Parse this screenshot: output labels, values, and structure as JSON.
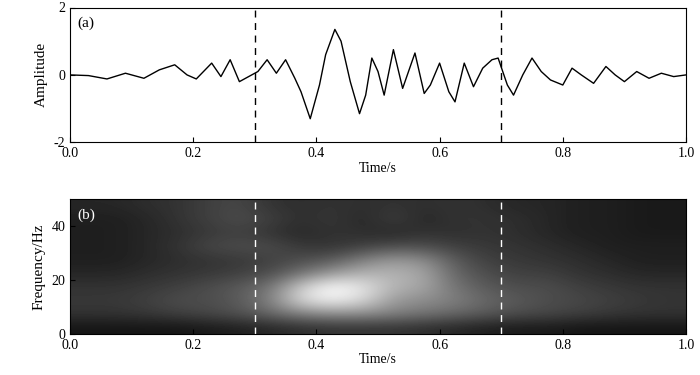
{
  "chart_data": [
    {
      "type": "line",
      "annotation": "(a)",
      "xlabel": "Time/s",
      "ylabel": "Amplitude",
      "x": [
        0.0,
        0.03,
        0.06,
        0.09,
        0.12,
        0.145,
        0.17,
        0.19,
        0.205,
        0.23,
        0.245,
        0.26,
        0.275,
        0.29,
        0.305,
        0.32,
        0.335,
        0.35,
        0.365,
        0.375,
        0.39,
        0.405,
        0.415,
        0.43,
        0.44,
        0.455,
        0.47,
        0.48,
        0.49,
        0.5,
        0.51,
        0.525,
        0.54,
        0.56,
        0.575,
        0.585,
        0.6,
        0.615,
        0.625,
        0.64,
        0.655,
        0.67,
        0.685,
        0.695,
        0.71,
        0.72,
        0.735,
        0.75,
        0.765,
        0.78,
        0.8,
        0.815,
        0.83,
        0.85,
        0.87,
        0.885,
        0.9,
        0.92,
        0.94,
        0.96,
        0.98,
        1.0
      ],
      "values": [
        0,
        -0.02,
        -0.12,
        0.05,
        -0.1,
        0.15,
        0.3,
        0.0,
        -0.12,
        0.35,
        -0.05,
        0.45,
        -0.2,
        -0.05,
        0.1,
        0.45,
        0.05,
        0.45,
        -0.1,
        -0.5,
        -1.3,
        -0.3,
        0.6,
        1.35,
        1.0,
        -0.2,
        -1.15,
        -0.6,
        0.5,
        0.1,
        -0.6,
        0.75,
        -0.4,
        0.65,
        -0.55,
        -0.3,
        0.35,
        -0.5,
        -0.8,
        0.35,
        -0.35,
        0.2,
        0.45,
        0.5,
        -0.3,
        -0.6,
        0.0,
        0.5,
        0.1,
        -0.15,
        -0.3,
        0.2,
        0.0,
        -0.25,
        0.25,
        0.0,
        -0.2,
        0.1,
        -0.1,
        0.05,
        -0.05,
        0
      ],
      "color": "#000000",
      "vlines": [
        0.3,
        0.7
      ],
      "xlim": [
        0,
        1
      ],
      "ylim": [
        -2,
        2
      ],
      "xticks": [
        {
          "value": 0,
          "label": "0.0"
        },
        {
          "value": 0.2,
          "label": "0.2"
        },
        {
          "value": 0.4,
          "label": "0.4"
        },
        {
          "value": 0.6,
          "label": "0.6"
        },
        {
          "value": 0.8,
          "label": "0.8"
        },
        {
          "value": 1,
          "label": "1.0"
        }
      ],
      "yticks": [
        -2,
        0,
        2
      ]
    },
    {
      "type": "heatmap",
      "annotation": "(b)",
      "xlabel": "Time/s",
      "ylabel": "Frequency/Hz",
      "x": [
        0.025,
        0.075,
        0.125,
        0.175,
        0.225,
        0.275,
        0.325,
        0.375,
        0.425,
        0.475,
        0.525,
        0.575,
        0.625,
        0.675,
        0.725,
        0.775,
        0.825,
        0.875,
        0.925,
        0.975
      ],
      "y": [
        2.5,
        7.5,
        12.5,
        17.5,
        22.5,
        27.5,
        32.5,
        37.5,
        42.5,
        47.5
      ],
      "cells": [
        [
          0.08,
          0.08,
          0.08,
          0.08,
          0.1,
          0.12,
          0.15,
          0.18,
          0.2,
          0.2,
          0.2,
          0.18,
          0.15,
          0.12,
          0.1,
          0.1,
          0.08,
          0.08,
          0.08,
          0.08
        ],
        [
          0.2,
          0.2,
          0.22,
          0.25,
          0.28,
          0.32,
          0.4,
          0.5,
          0.55,
          0.55,
          0.5,
          0.45,
          0.4,
          0.35,
          0.3,
          0.28,
          0.25,
          0.22,
          0.2,
          0.2
        ],
        [
          0.22,
          0.22,
          0.25,
          0.3,
          0.3,
          0.35,
          0.5,
          0.85,
          0.95,
          0.85,
          0.6,
          0.55,
          0.5,
          0.4,
          0.35,
          0.3,
          0.28,
          0.25,
          0.22,
          0.2
        ],
        [
          0.2,
          0.2,
          0.22,
          0.25,
          0.3,
          0.35,
          0.45,
          0.8,
          1.0,
          0.9,
          0.7,
          0.65,
          0.45,
          0.35,
          0.3,
          0.3,
          0.25,
          0.22,
          0.2,
          0.2
        ],
        [
          0.15,
          0.15,
          0.18,
          0.2,
          0.22,
          0.25,
          0.3,
          0.45,
          0.6,
          0.7,
          0.7,
          0.65,
          0.4,
          0.3,
          0.25,
          0.25,
          0.2,
          0.18,
          0.15,
          0.15
        ],
        [
          0.12,
          0.12,
          0.15,
          0.18,
          0.2,
          0.22,
          0.25,
          0.3,
          0.35,
          0.5,
          0.6,
          0.55,
          0.35,
          0.25,
          0.22,
          0.2,
          0.18,
          0.15,
          0.12,
          0.12
        ],
        [
          0.12,
          0.12,
          0.15,
          0.2,
          0.28,
          0.3,
          0.3,
          0.22,
          0.2,
          0.25,
          0.3,
          0.3,
          0.25,
          0.22,
          0.2,
          0.18,
          0.15,
          0.12,
          0.12,
          0.12
        ],
        [
          0.12,
          0.12,
          0.15,
          0.18,
          0.22,
          0.25,
          0.2,
          0.15,
          0.2,
          0.18,
          0.15,
          0.2,
          0.18,
          0.2,
          0.18,
          0.15,
          0.12,
          0.12,
          0.1,
          0.1
        ],
        [
          0.12,
          0.12,
          0.15,
          0.2,
          0.25,
          0.3,
          0.25,
          0.18,
          0.22,
          0.15,
          0.25,
          0.15,
          0.2,
          0.2,
          0.18,
          0.15,
          0.12,
          0.12,
          0.1,
          0.1
        ],
        [
          0.15,
          0.15,
          0.18,
          0.2,
          0.25,
          0.28,
          0.2,
          0.18,
          0.2,
          0.18,
          0.2,
          0.18,
          0.2,
          0.18,
          0.15,
          0.15,
          0.12,
          0.12,
          0.1,
          0.1
        ]
      ],
      "zlim": [
        0,
        1
      ],
      "vlines": [
        0.3,
        0.7
      ],
      "xlim": [
        0,
        1
      ],
      "ylim": [
        0,
        50
      ],
      "xticks": [
        {
          "value": 0,
          "label": "0.0"
        },
        {
          "value": 0.2,
          "label": "0.2"
        },
        {
          "value": 0.4,
          "label": "0.4"
        },
        {
          "value": 0.6,
          "label": "0.6"
        },
        {
          "value": 0.8,
          "label": "0.8"
        },
        {
          "value": 1,
          "label": "1.0"
        }
      ],
      "yticks": [
        0,
        20,
        40
      ]
    }
  ]
}
